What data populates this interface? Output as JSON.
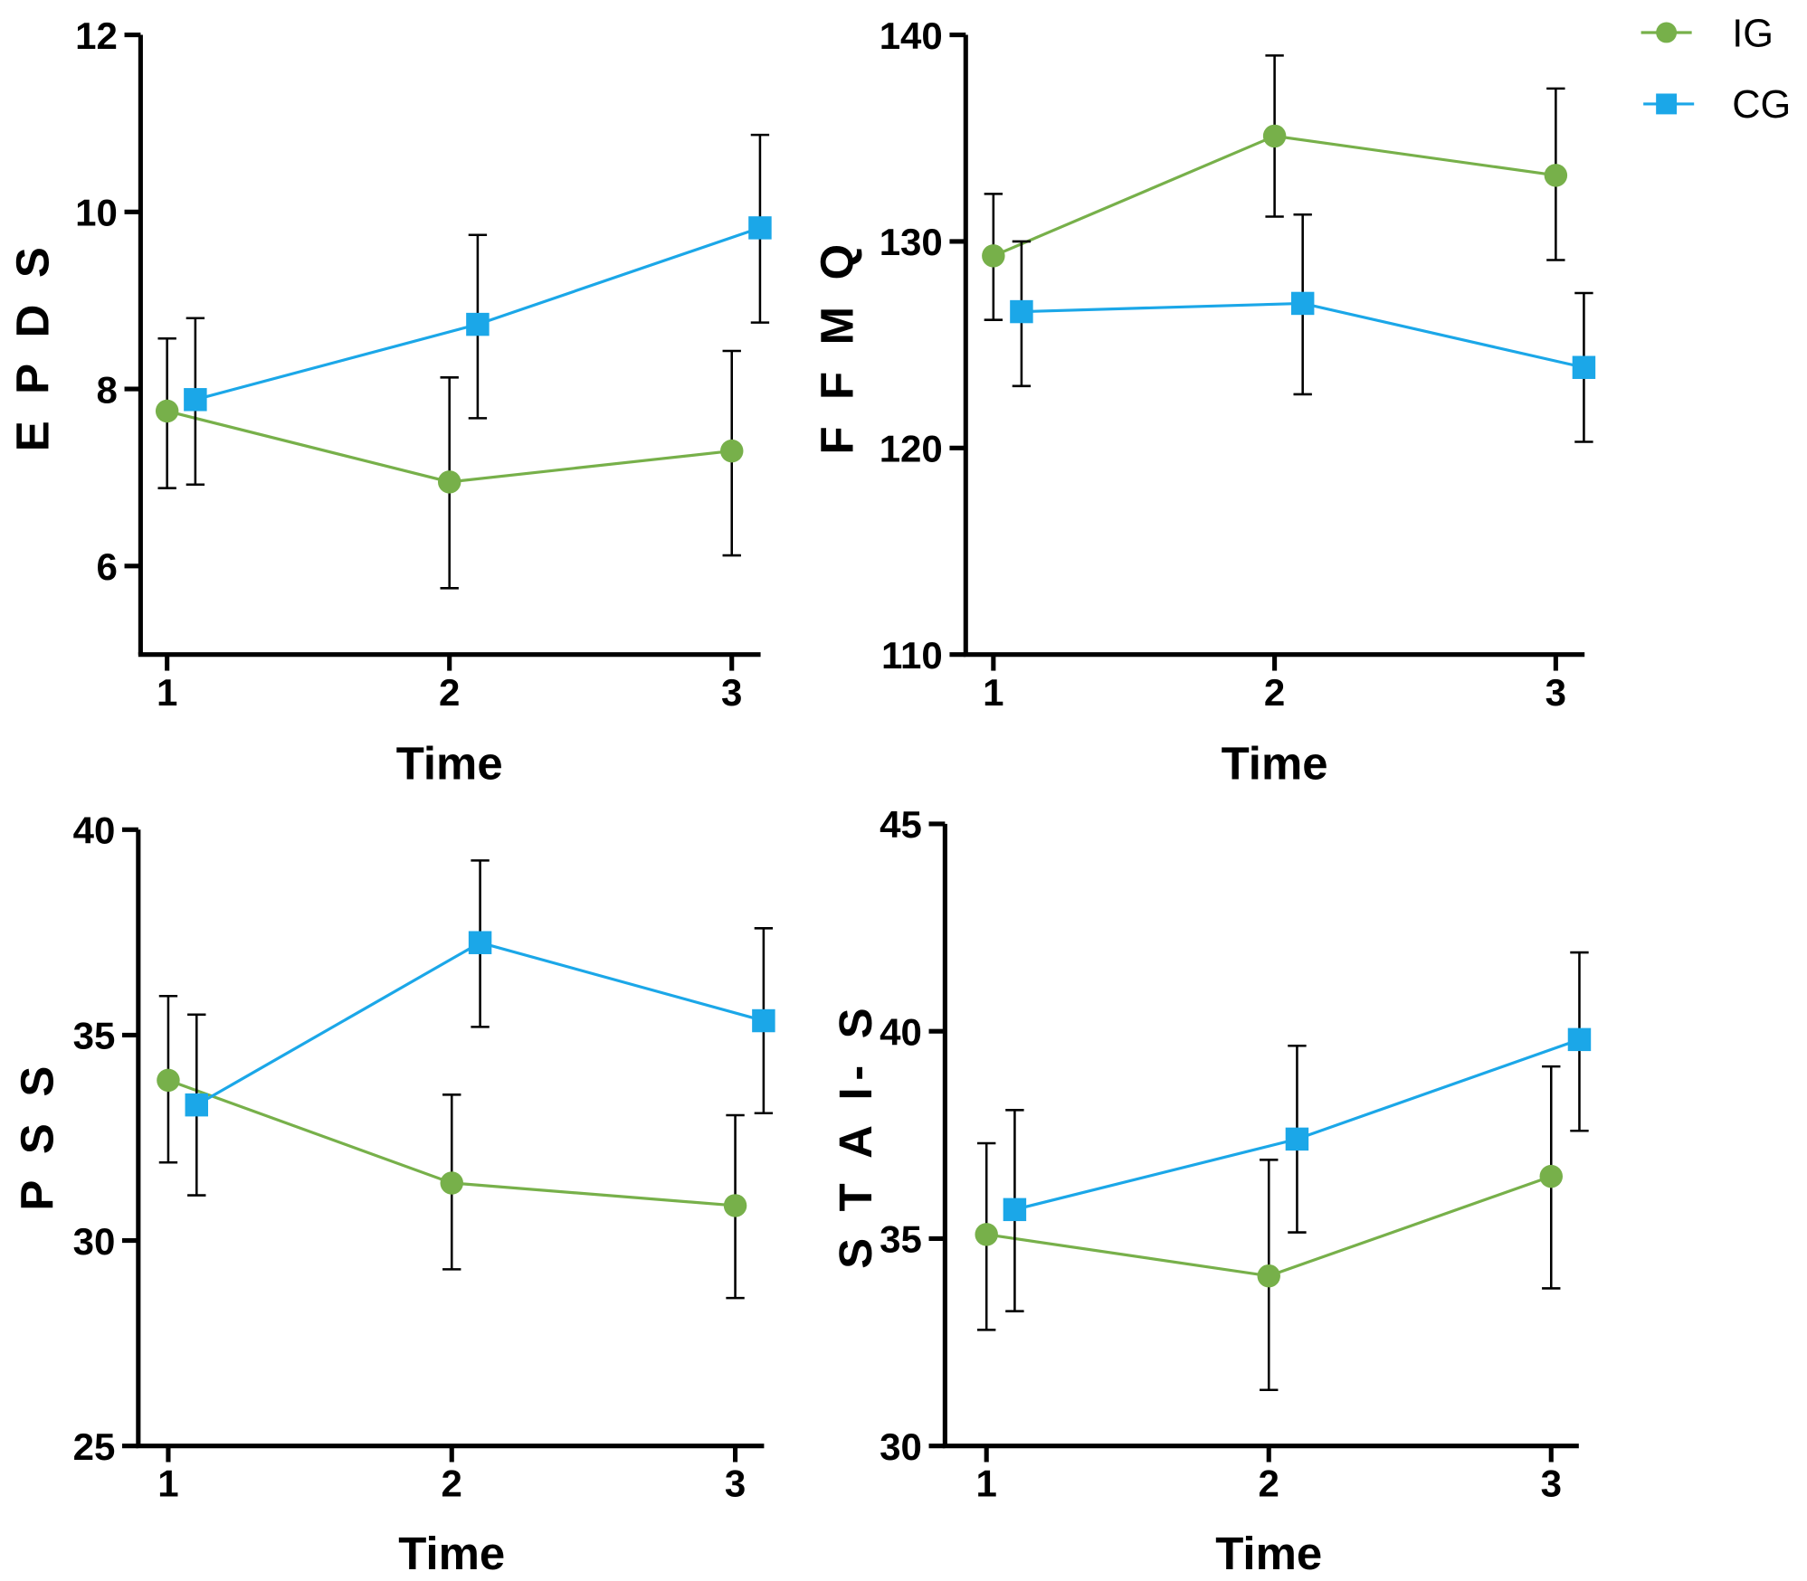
{
  "legend": [
    {
      "name": "IG",
      "color": "#77b04a",
      "marker": "circle"
    },
    {
      "name": "CG",
      "color": "#1ba7e8",
      "marker": "square"
    }
  ],
  "chart_data": [
    {
      "type": "line",
      "title": "",
      "xlabel": "Time",
      "ylabel": "E P D S",
      "x": [
        1,
        2,
        3
      ],
      "xticks": [
        "1",
        "2",
        "3"
      ],
      "ylim": [
        5,
        12
      ],
      "yticks": [
        6,
        8,
        10,
        12
      ],
      "grid": false,
      "series": [
        {
          "name": "IG",
          "values": [
            7.75,
            6.95,
            7.3
          ],
          "err_low": [
            6.88,
            5.75,
            6.12
          ],
          "err_high": [
            8.57,
            8.13,
            8.43
          ]
        },
        {
          "name": "CG",
          "values": [
            7.88,
            8.73,
            9.82
          ],
          "err_low": [
            6.92,
            7.67,
            8.75
          ],
          "err_high": [
            8.8,
            9.74,
            10.87
          ]
        }
      ]
    },
    {
      "type": "line",
      "title": "",
      "xlabel": "Time",
      "ylabel": "F F M Q",
      "x": [
        1,
        2,
        3
      ],
      "xticks": [
        "1",
        "2",
        "3"
      ],
      "ylim": [
        110,
        140
      ],
      "yticks": [
        110,
        120,
        130,
        140
      ],
      "grid": false,
      "series": [
        {
          "name": "IG",
          "values": [
            129.3,
            135.1,
            133.2
          ],
          "err_low": [
            126.2,
            131.2,
            129.1
          ],
          "err_high": [
            132.3,
            139.0,
            137.4
          ]
        },
        {
          "name": "CG",
          "values": [
            126.6,
            127.0,
            123.9
          ],
          "err_low": [
            123.0,
            122.6,
            120.3
          ],
          "err_high": [
            130.0,
            131.3,
            127.5
          ]
        }
      ]
    },
    {
      "type": "line",
      "title": "",
      "xlabel": "Time",
      "ylabel": "P S S",
      "x": [
        1,
        2,
        3
      ],
      "xticks": [
        "1",
        "2",
        "3"
      ],
      "ylim": [
        25,
        40
      ],
      "yticks": [
        25,
        30,
        35,
        40
      ],
      "grid": false,
      "series": [
        {
          "name": "IG",
          "values": [
            33.9,
            31.4,
            30.85
          ],
          "err_low": [
            31.9,
            29.3,
            28.6
          ],
          "err_high": [
            35.95,
            33.55,
            33.05
          ]
        },
        {
          "name": "CG",
          "values": [
            33.3,
            37.25,
            35.35
          ],
          "err_low": [
            31.1,
            35.2,
            33.1
          ],
          "err_high": [
            35.5,
            39.25,
            37.6
          ]
        }
      ]
    },
    {
      "type": "line",
      "title": "",
      "xlabel": "Time",
      "ylabel": "S T A I- S",
      "x": [
        1,
        2,
        3
      ],
      "xticks": [
        "1",
        "2",
        "3"
      ],
      "ylim": [
        30,
        45
      ],
      "yticks": [
        30,
        35,
        40,
        45
      ],
      "grid": false,
      "series": [
        {
          "name": "IG",
          "values": [
            35.1,
            34.1,
            36.5
          ],
          "err_low": [
            32.8,
            31.35,
            33.8
          ],
          "err_high": [
            37.3,
            36.9,
            39.15
          ]
        },
        {
          "name": "CG",
          "values": [
            35.7,
            37.4,
            39.8
          ],
          "err_low": [
            33.25,
            35.15,
            37.6
          ],
          "err_high": [
            38.1,
            39.65,
            41.9
          ]
        }
      ]
    }
  ]
}
